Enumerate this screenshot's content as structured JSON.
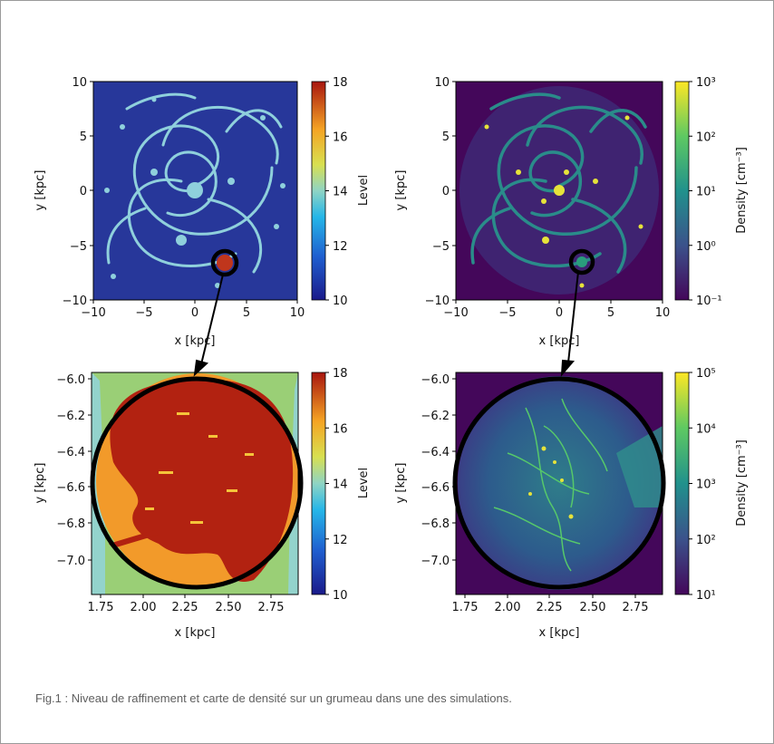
{
  "caption": "Fig.1 : Niveau de raffinement et carte de densité sur un grumeau dans une des simulations.",
  "chart_data": [
    {
      "type": "heatmap",
      "panel": "top-left",
      "xlabel": "x [kpc]",
      "ylabel": "y [kpc]",
      "xlim": [
        -10,
        10
      ],
      "ylim": [
        -10,
        10
      ],
      "xticks": [
        "−10",
        "−5",
        "0",
        "5",
        "10"
      ],
      "yticks": [
        "10",
        "5",
        "0",
        "−5",
        "−10"
      ],
      "colorbar": {
        "label": "Level",
        "scale": "linear",
        "range": [
          10,
          18
        ],
        "ticks": [
          "18",
          "16",
          "14",
          "12",
          "10"
        ],
        "colormap": "jet"
      },
      "annotation": {
        "type": "circle",
        "center": [
          2.3,
          -6.6
        ]
      }
    },
    {
      "type": "heatmap",
      "panel": "top-right",
      "xlabel": "x [kpc]",
      "ylabel": "y [kpc]",
      "xlim": [
        -10,
        10
      ],
      "ylim": [
        -10,
        10
      ],
      "xticks": [
        "−10",
        "−5",
        "0",
        "5",
        "10"
      ],
      "yticks": [
        "10",
        "5",
        "0",
        "−5",
        "−10"
      ],
      "colorbar": {
        "label": "Density [cm⁻³]",
        "scale": "log",
        "range": [
          0.1,
          1000
        ],
        "ticks": [
          "10³",
          "10²",
          "10¹",
          "10⁰",
          "10⁻¹"
        ],
        "colormap": "viridis"
      },
      "annotation": {
        "type": "circle",
        "center": [
          2.3,
          -6.6
        ]
      }
    },
    {
      "type": "heatmap",
      "panel": "bottom-left",
      "xlabel": "x [kpc]",
      "ylabel": "y [kpc]",
      "xlim": [
        1.7,
        2.9
      ],
      "ylim": [
        -7.15,
        -5.95
      ],
      "xticks": [
        "1.75",
        "2.00",
        "2.25",
        "2.50",
        "2.75"
      ],
      "yticks": [
        "−6.0",
        "−6.2",
        "−6.4",
        "−6.6",
        "−6.8",
        "−7.0"
      ],
      "colorbar": {
        "label": "Level",
        "scale": "linear",
        "range": [
          10,
          18
        ],
        "ticks": [
          "18",
          "16",
          "14",
          "12",
          "10"
        ],
        "colormap": "jet"
      }
    },
    {
      "type": "heatmap",
      "panel": "bottom-right",
      "xlabel": "x [kpc]",
      "ylabel": "y [kpc]",
      "xlim": [
        1.7,
        2.9
      ],
      "ylim": [
        -7.15,
        -5.95
      ],
      "xticks": [
        "1.75",
        "2.00",
        "2.25",
        "2.50",
        "2.75"
      ],
      "yticks": [
        "−6.0",
        "−6.2",
        "−6.4",
        "−6.6",
        "−6.8",
        "−7.0"
      ],
      "colorbar": {
        "label": "Density [cm⁻³]",
        "scale": "log",
        "range": [
          10,
          100000
        ],
        "ticks": [
          "10⁵",
          "10⁴",
          "10³",
          "10²",
          "10¹"
        ],
        "colormap": "viridis"
      }
    }
  ]
}
